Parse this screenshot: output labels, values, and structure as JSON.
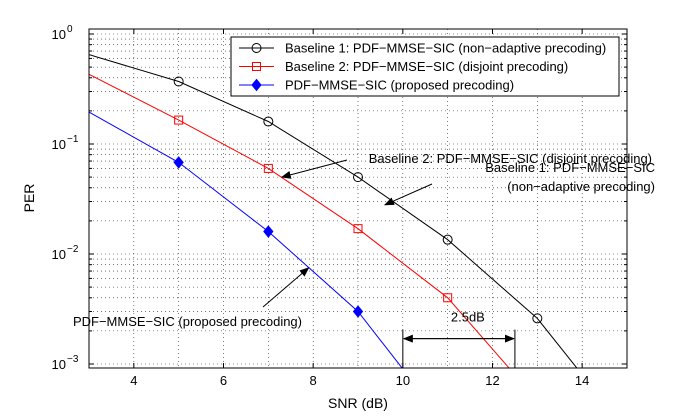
{
  "chart_data": {
    "type": "line",
    "xlabel": "SNR (dB)",
    "ylabel": "PER",
    "xlim": [
      3,
      15
    ],
    "ylim": [
      0.0008,
      1
    ],
    "yscale": "log",
    "grid": true,
    "legend_position": "top-right",
    "x_ticks": [
      "4",
      "6",
      "8",
      "10",
      "12",
      "14"
    ],
    "y_ticks": [
      {
        "base": "10",
        "exp": "0"
      },
      {
        "base": "10",
        "exp": "−1"
      },
      {
        "base": "10",
        "exp": "−2"
      },
      {
        "base": "10",
        "exp": "−3"
      }
    ],
    "series": [
      {
        "name": "Baseline 1: PDF−MMSE−SIC (non−adaptive precoding)",
        "color": "#000000",
        "marker": "circle",
        "line_x": [
          3,
          5,
          7,
          9,
          11,
          13,
          14
        ],
        "line_y": [
          0.65,
          0.37,
          0.16,
          0.05,
          0.0135,
          0.0026,
          0.0008
        ],
        "marker_x": [
          5,
          7,
          9,
          11,
          13
        ],
        "marker_y": [
          0.37,
          0.16,
          0.05,
          0.0135,
          0.0026
        ]
      },
      {
        "name": "Baseline 2: PDF−MMSE−SIC (disjoint precoding)",
        "color": "#ff0000",
        "marker": "square",
        "line_x": [
          3,
          5,
          7,
          9,
          11,
          12.5
        ],
        "line_y": [
          0.43,
          0.165,
          0.06,
          0.017,
          0.004,
          0.0008
        ],
        "marker_x": [
          5,
          7,
          9,
          11
        ],
        "marker_y": [
          0.165,
          0.06,
          0.017,
          0.004
        ]
      },
      {
        "name": "PDF−MMSE−SIC (proposed precoding)",
        "color": "#0000ff",
        "marker": "diamond",
        "line_x": [
          3,
          5,
          7,
          9,
          10.1
        ],
        "line_y": [
          0.195,
          0.068,
          0.016,
          0.003,
          0.0008
        ],
        "marker_x": [
          5,
          7,
          9
        ],
        "marker_y": [
          0.068,
          0.016,
          0.003
        ]
      }
    ],
    "annotations": [
      {
        "id": "b2",
        "lines": [
          "Baseline 2: PDF−MMSE−SIC (disjoint precoding)"
        ],
        "target_x": 7.3,
        "target_y": 0.05
      },
      {
        "id": "b1",
        "lines": [
          "Baseline 1: PDF−MMSE−SIC",
          "(non−adaptive precoding)"
        ],
        "target_x": 9.6,
        "target_y": 0.028
      },
      {
        "id": "prop",
        "lines": [
          "PDF−MMSE−SIC (proposed precoding)"
        ],
        "target_x": 7.9,
        "target_y": 0.0075
      }
    ],
    "gap_annotation": {
      "label": "2.5dB",
      "x_start": 10,
      "x_end": 12.5,
      "y": 0.0017
    }
  }
}
